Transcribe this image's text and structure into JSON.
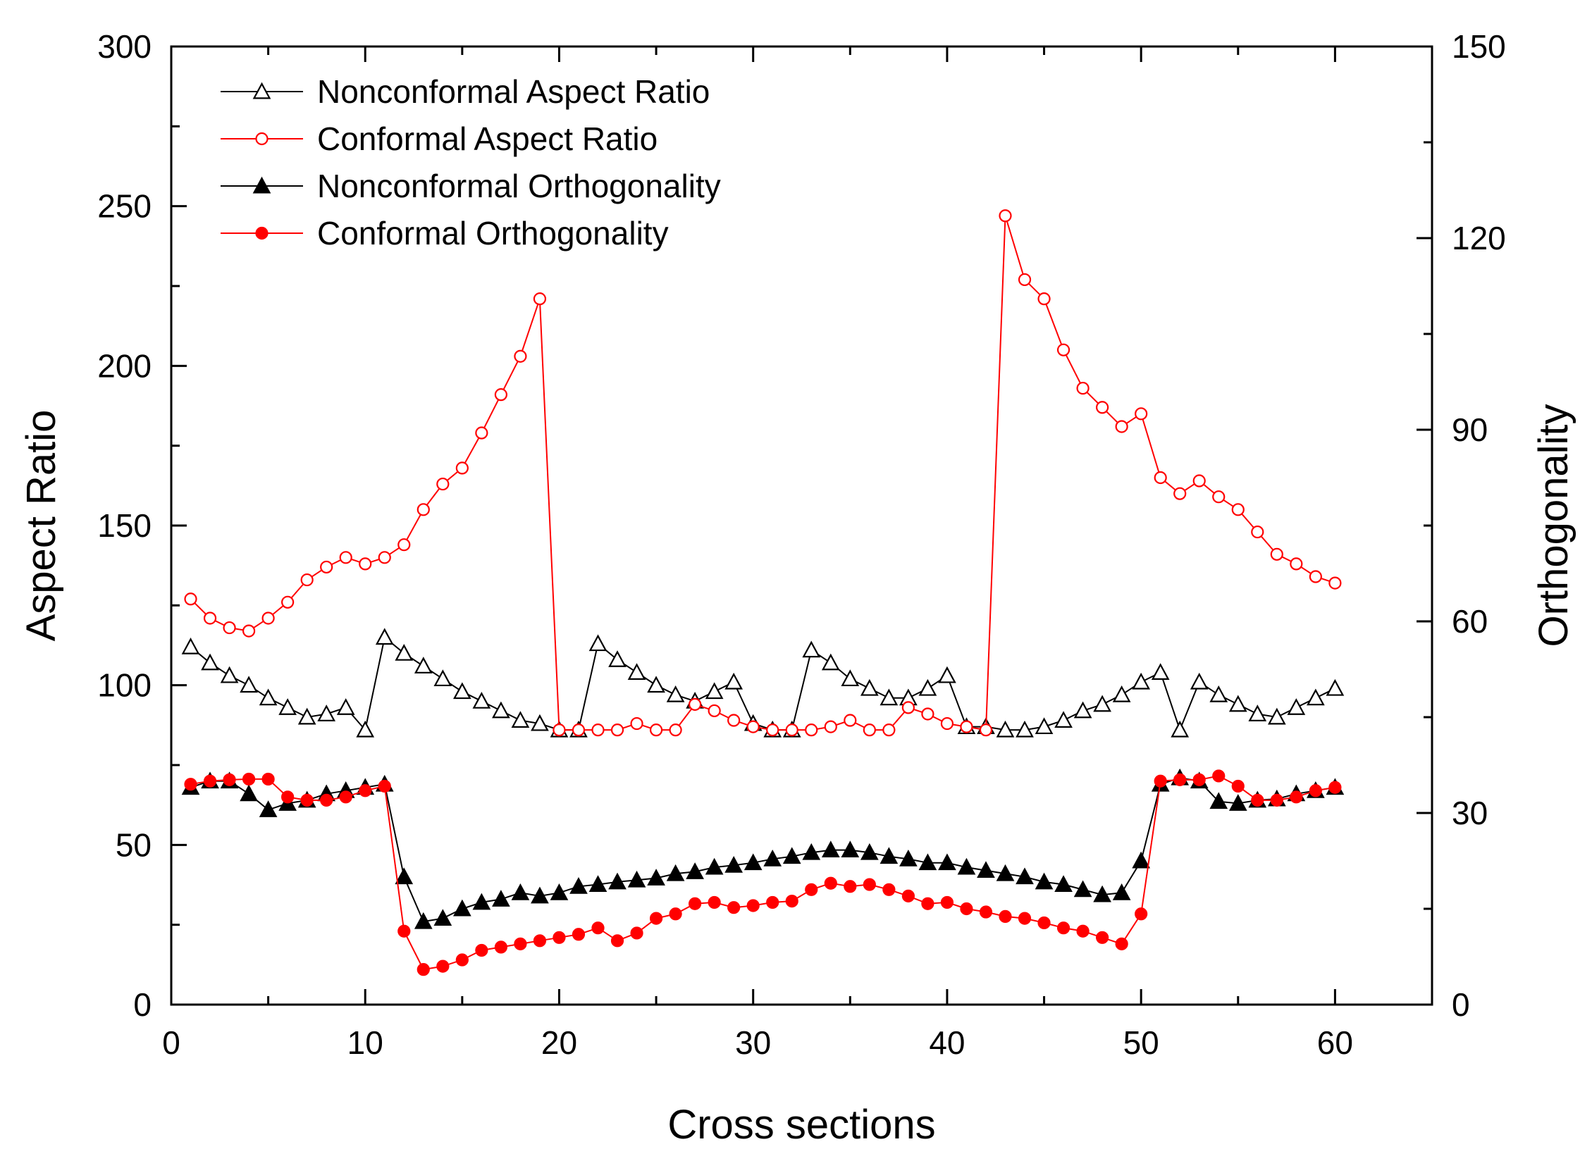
{
  "chart_data": {
    "type": "line",
    "title": "",
    "xlabel": "Cross sections",
    "ylabel": "Aspect Ratio",
    "y2label": "Orthogonality",
    "xlim": [
      0,
      65
    ],
    "ylim": [
      0,
      300
    ],
    "y2lim": [
      0,
      150
    ],
    "x_ticks": [
      0,
      10,
      20,
      30,
      40,
      50,
      60
    ],
    "y_ticks": [
      0,
      50,
      100,
      150,
      200,
      250,
      300
    ],
    "y2_ticks": [
      0,
      30,
      60,
      90,
      120,
      150
    ],
    "grid": false,
    "legend_position": "top-left",
    "x": [
      1,
      2,
      3,
      4,
      5,
      6,
      7,
      8,
      9,
      10,
      11,
      12,
      13,
      14,
      15,
      16,
      17,
      18,
      19,
      20,
      21,
      22,
      23,
      24,
      25,
      26,
      27,
      28,
      29,
      30,
      31,
      32,
      33,
      34,
      35,
      36,
      37,
      38,
      39,
      40,
      41,
      42,
      43,
      44,
      45,
      46,
      47,
      48,
      49,
      50,
      51,
      52,
      53,
      54,
      55,
      56,
      57,
      58,
      59,
      60
    ],
    "series": [
      {
        "name": "Nonconformal Aspect Ratio",
        "axis": "left",
        "color": "#000000",
        "marker": "triangle-open",
        "values": [
          112,
          107,
          103,
          100,
          96,
          93,
          90,
          91,
          93,
          86,
          115,
          110,
          106,
          102,
          98,
          95,
          92,
          89,
          88,
          86,
          86,
          113,
          108,
          104,
          100,
          97,
          95,
          98,
          101,
          88,
          86,
          86,
          111,
          107,
          102,
          99,
          96,
          96,
          99,
          103,
          87,
          87,
          86,
          86,
          87,
          89,
          92,
          94,
          97,
          101,
          104,
          86,
          101,
          97,
          94,
          91,
          90,
          93,
          96,
          99
        ]
      },
      {
        "name": "Conformal  Aspect Ratio",
        "axis": "left",
        "color": "#ff0000",
        "marker": "circle-open",
        "values": [
          127,
          121,
          118,
          117,
          121,
          126,
          133,
          137,
          140,
          138,
          140,
          144,
          155,
          163,
          168,
          179,
          191,
          203,
          221,
          86,
          86,
          86,
          86,
          88,
          86,
          86,
          94,
          92,
          89,
          87,
          86,
          86,
          86,
          87,
          89,
          86,
          86,
          93,
          91,
          88,
          87,
          86,
          247,
          227,
          221,
          205,
          193,
          187,
          181,
          185,
          165,
          160,
          164,
          159,
          155,
          148,
          141,
          138,
          134,
          132
        ]
      },
      {
        "name": "Nonconformal Orthogonality",
        "axis": "right",
        "color": "#000000",
        "marker": "triangle-filled",
        "values": [
          34,
          35,
          35,
          33,
          30.5,
          31.5,
          32,
          33,
          33.5,
          34,
          34.5,
          20,
          13,
          13.5,
          15,
          16,
          16.5,
          17.5,
          17,
          17.5,
          18.5,
          18.8,
          19.2,
          19.5,
          19.8,
          20.5,
          20.8,
          21.5,
          21.8,
          22.2,
          22.8,
          23.2,
          23.8,
          24.2,
          24.2,
          23.8,
          23.2,
          22.8,
          22.2,
          22.2,
          21.5,
          21,
          20.5,
          20,
          19.2,
          18.8,
          18,
          17.2,
          17.5,
          22.5,
          34.5,
          35.5,
          35,
          31.8,
          31.5,
          32,
          32.2,
          33,
          33.5,
          34
        ]
      },
      {
        "name": "Conformal  Orthogonality",
        "axis": "right",
        "color": "#ff0000",
        "marker": "circle-filled",
        "values": [
          34.5,
          35,
          35.2,
          35.3,
          35.3,
          32.5,
          32,
          32,
          32.5,
          33.5,
          34.2,
          11.5,
          5.5,
          6,
          7,
          8.5,
          9,
          9.5,
          10,
          10.5,
          11,
          12,
          10,
          11.2,
          13.5,
          14.2,
          15.8,
          16,
          15.2,
          15.5,
          16,
          16.2,
          18,
          19,
          18.5,
          18.8,
          18,
          17,
          15.8,
          16,
          15,
          14.5,
          13.8,
          13.5,
          12.8,
          12,
          11.5,
          10.5,
          9.5,
          14.2,
          35,
          35.2,
          35.2,
          35.8,
          34.2,
          32,
          32,
          32.5,
          33.5,
          34
        ]
      }
    ]
  }
}
